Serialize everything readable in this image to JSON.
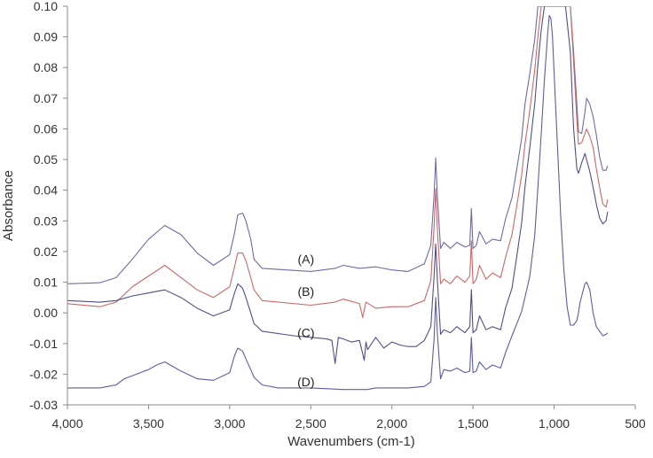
{
  "chart_data": {
    "type": "line",
    "title": "",
    "xlabel": "Wavenumbers (cm-1)",
    "ylabel": "Absorbance",
    "xlim": [
      4000,
      500
    ],
    "ylim": [
      -0.03,
      0.1
    ],
    "x_reversed": true,
    "grid": false,
    "legend": "none",
    "x_ticks": [
      4000,
      3500,
      3000,
      2500,
      2000,
      1500,
      1000,
      500
    ],
    "x_tick_labels": [
      "4,000",
      "3,500",
      "3,000",
      "2,500",
      "2,000",
      "1,500",
      "1,000",
      "500"
    ],
    "y_ticks": [
      -0.03,
      -0.02,
      -0.01,
      0.0,
      0.01,
      0.02,
      0.03,
      0.04,
      0.05,
      0.06,
      0.07,
      0.08,
      0.09,
      0.1
    ],
    "y_tick_labels": [
      "-0.03",
      "-0.02",
      "-0.01",
      "0.00",
      "0.01",
      "0.02",
      "0.03",
      "0.04",
      "0.05",
      "0.06",
      "0.07",
      "0.08",
      "0.09",
      "0.10"
    ],
    "series": [
      {
        "label": "(A)",
        "label_at": [
          2530,
          0.0175
        ],
        "color": "#6f6aa8",
        "x": [
          4000,
          3800,
          3700,
          3600,
          3500,
          3400,
          3300,
          3200,
          3100,
          3000,
          2970,
          2950,
          2920,
          2900,
          2870,
          2850,
          2800,
          2500,
          2350,
          2300,
          2200,
          2100,
          2000,
          1900,
          1800,
          1760,
          1740,
          1730,
          1720,
          1700,
          1680,
          1640,
          1600,
          1550,
          1520,
          1510,
          1500,
          1480,
          1460,
          1420,
          1380,
          1330,
          1300,
          1260,
          1230,
          1200,
          1180,
          1150,
          1120,
          1100,
          1070,
          1060,
          1040,
          1020,
          1000,
          985,
          970,
          950,
          930,
          900,
          880,
          860,
          850,
          830,
          810,
          800,
          780,
          760,
          740,
          720,
          700,
          680,
          670
        ],
        "y": [
          0.0095,
          0.0098,
          0.0115,
          0.0175,
          0.024,
          0.0285,
          0.0255,
          0.0195,
          0.0155,
          0.019,
          0.026,
          0.032,
          0.0325,
          0.03,
          0.024,
          0.0175,
          0.0145,
          0.0135,
          0.0145,
          0.0155,
          0.0145,
          0.015,
          0.014,
          0.0135,
          0.016,
          0.022,
          0.0385,
          0.0505,
          0.0385,
          0.021,
          0.023,
          0.021,
          0.023,
          0.0215,
          0.022,
          0.034,
          0.021,
          0.022,
          0.0265,
          0.0225,
          0.024,
          0.0235,
          0.0305,
          0.0375,
          0.047,
          0.057,
          0.068,
          0.078,
          0.089,
          0.1,
          0.1,
          0.1,
          0.1,
          0.1,
          0.1,
          0.1,
          0.1,
          0.1,
          0.1,
          0.1,
          0.085,
          0.068,
          0.059,
          0.0585,
          0.0655,
          0.07,
          0.068,
          0.064,
          0.058,
          0.051,
          0.0465,
          0.0465,
          0.048
        ]
      },
      {
        "label": "(B)",
        "label_at": [
          2530,
          0.007
        ],
        "color": "#d06565",
        "x": [
          4000,
          3800,
          3700,
          3600,
          3500,
          3400,
          3300,
          3200,
          3100,
          3000,
          2970,
          2950,
          2920,
          2900,
          2870,
          2850,
          2800,
          2500,
          2350,
          2300,
          2200,
          2180,
          2160,
          2100,
          2000,
          1900,
          1800,
          1760,
          1740,
          1730,
          1720,
          1700,
          1680,
          1640,
          1600,
          1550,
          1520,
          1510,
          1500,
          1480,
          1460,
          1420,
          1380,
          1330,
          1300,
          1260,
          1230,
          1200,
          1180,
          1150,
          1120,
          1100,
          1080,
          1060,
          1040,
          1020,
          1000,
          985,
          970,
          950,
          930,
          900,
          880,
          860,
          850,
          830,
          810,
          800,
          780,
          760,
          740,
          720,
          700,
          680,
          670
        ],
        "y": [
          0.003,
          0.002,
          0.0035,
          0.0085,
          0.012,
          0.0155,
          0.0115,
          0.0075,
          0.005,
          0.0085,
          0.015,
          0.0195,
          0.0195,
          0.017,
          0.0115,
          0.0075,
          0.004,
          0.0025,
          0.0035,
          0.0045,
          0.003,
          -0.0015,
          0.0035,
          0.0015,
          0.002,
          0.002,
          0.004,
          0.0105,
          0.028,
          0.0405,
          0.0275,
          0.0095,
          0.011,
          0.0095,
          0.012,
          0.01,
          0.012,
          0.0235,
          0.0095,
          0.011,
          0.0155,
          0.011,
          0.013,
          0.0115,
          0.018,
          0.0255,
          0.035,
          0.045,
          0.055,
          0.066,
          0.079,
          0.09,
          0.1,
          0.1,
          0.1,
          0.1,
          0.1,
          0.1,
          0.1,
          0.1,
          0.1,
          0.1,
          0.082,
          0.063,
          0.055,
          0.0555,
          0.0585,
          0.06,
          0.0575,
          0.054,
          0.047,
          0.041,
          0.0355,
          0.0345,
          0.037
        ]
      },
      {
        "label": "(C)",
        "label_at": [
          2530,
          -0.0065
        ],
        "color": "#4f4f86",
        "x": [
          4000,
          3800,
          3700,
          3600,
          3500,
          3400,
          3300,
          3200,
          3100,
          3000,
          2970,
          2950,
          2920,
          2900,
          2870,
          2850,
          2800,
          2600,
          2500,
          2400,
          2370,
          2350,
          2330,
          2300,
          2250,
          2200,
          2170,
          2160,
          2150,
          2100,
          2050,
          2000,
          1950,
          1900,
          1850,
          1800,
          1760,
          1740,
          1730,
          1720,
          1700,
          1680,
          1640,
          1600,
          1550,
          1520,
          1510,
          1500,
          1480,
          1460,
          1420,
          1380,
          1330,
          1300,
          1260,
          1230,
          1200,
          1180,
          1150,
          1120,
          1100,
          1080,
          1060,
          1040,
          1020,
          1000,
          985,
          970,
          950,
          930,
          900,
          880,
          860,
          850,
          830,
          810,
          800,
          780,
          760,
          740,
          720,
          700,
          680,
          670
        ],
        "y": [
          0.004,
          0.0035,
          0.004,
          0.0055,
          0.0065,
          0.0075,
          0.005,
          0.0015,
          -0.001,
          0.001,
          0.0065,
          0.0095,
          0.008,
          0.005,
          0.0,
          -0.0035,
          -0.006,
          -0.0075,
          -0.008,
          -0.0085,
          -0.009,
          -0.0165,
          -0.008,
          -0.0085,
          -0.0095,
          -0.009,
          -0.0155,
          -0.0095,
          -0.012,
          -0.008,
          -0.0115,
          -0.0095,
          -0.0105,
          -0.011,
          -0.011,
          -0.009,
          -0.0045,
          0.012,
          0.0225,
          0.011,
          -0.007,
          -0.0055,
          -0.0065,
          -0.0045,
          -0.0065,
          -0.0045,
          0.0075,
          -0.0065,
          -0.0055,
          -0.001,
          -0.0055,
          -0.0045,
          -0.0055,
          0.0015,
          0.008,
          0.0185,
          0.0295,
          0.041,
          0.054,
          0.068,
          0.081,
          0.092,
          0.1,
          0.1,
          0.1,
          0.1,
          0.1,
          0.1,
          0.1,
          0.1,
          0.085,
          0.06,
          0.047,
          0.0455,
          0.049,
          0.052,
          0.05,
          0.046,
          0.041,
          0.0355,
          0.031,
          0.029,
          0.03,
          0.033
        ]
      },
      {
        "label": "(D)",
        "label_at": [
          2530,
          -0.0225
        ],
        "color": "#5d5da3",
        "x": [
          4000,
          3800,
          3700,
          3650,
          3600,
          3500,
          3450,
          3400,
          3350,
          3300,
          3200,
          3100,
          3000,
          2970,
          2950,
          2920,
          2900,
          2870,
          2850,
          2800,
          2700,
          2500,
          2300,
          2150,
          2100,
          2000,
          1900,
          1800,
          1760,
          1740,
          1730,
          1720,
          1700,
          1680,
          1640,
          1600,
          1550,
          1520,
          1510,
          1500,
          1480,
          1460,
          1420,
          1380,
          1330,
          1300,
          1260,
          1230,
          1200,
          1180,
          1150,
          1120,
          1100,
          1080,
          1060,
          1040,
          1030,
          1020,
          1010,
          1000,
          980,
          960,
          940,
          920,
          900,
          880,
          860,
          850,
          840,
          830,
          810,
          800,
          780,
          760,
          740,
          720,
          700,
          680,
          670
        ],
        "y": [
          -0.0245,
          -0.0245,
          -0.0235,
          -0.0215,
          -0.0205,
          -0.0185,
          -0.017,
          -0.016,
          -0.0175,
          -0.019,
          -0.0215,
          -0.022,
          -0.0195,
          -0.014,
          -0.0115,
          -0.0125,
          -0.015,
          -0.0185,
          -0.021,
          -0.0235,
          -0.0245,
          -0.0245,
          -0.025,
          -0.025,
          -0.0245,
          -0.0245,
          -0.0245,
          -0.024,
          -0.0225,
          -0.0085,
          0.005,
          -0.0065,
          -0.0215,
          -0.0185,
          -0.019,
          -0.018,
          -0.0195,
          -0.019,
          -0.008,
          -0.0195,
          -0.019,
          -0.016,
          -0.0185,
          -0.017,
          -0.018,
          -0.013,
          -0.0075,
          -0.0035,
          0.0005,
          0.005,
          0.012,
          0.025,
          0.041,
          0.058,
          0.076,
          0.091,
          0.097,
          0.096,
          0.09,
          0.078,
          0.055,
          0.032,
          0.014,
          0.002,
          -0.004,
          -0.004,
          -0.0025,
          0.0,
          0.0035,
          0.0055,
          0.0095,
          0.01,
          0.0075,
          0.0,
          -0.0045,
          -0.006,
          -0.0075,
          -0.007,
          -0.0065
        ]
      }
    ]
  }
}
